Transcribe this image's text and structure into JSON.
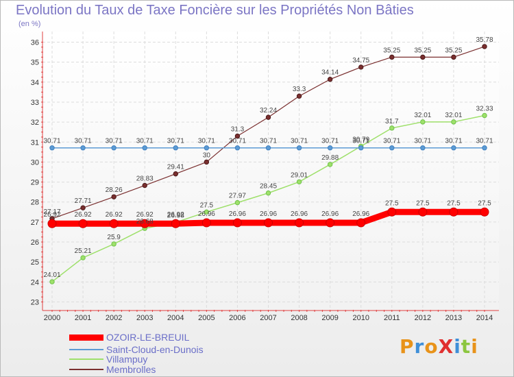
{
  "chart_data": {
    "type": "line",
    "title": "Evolution du Taux de Taxe Foncière sur les Propriétés Non Bâties",
    "ylabel": "(en %)",
    "xlabel": "",
    "categories": [
      "2000",
      "2001",
      "2002",
      "2003",
      "2004",
      "2005",
      "2006",
      "2007",
      "2008",
      "2009",
      "2010",
      "2011",
      "2012",
      "2013",
      "2014"
    ],
    "yticks": [
      23,
      24,
      25,
      26,
      27,
      28,
      29,
      30,
      31,
      32,
      33,
      34,
      35,
      36
    ],
    "ylim": [
      23,
      36
    ],
    "series": [
      {
        "name": "OZOIR-LE-BREUIL",
        "color": "#ff0000",
        "values": [
          26.92,
          26.92,
          26.92,
          26.92,
          26.92,
          26.96,
          26.96,
          26.96,
          26.96,
          26.96,
          26.96,
          27.5,
          27.5,
          27.5,
          27.5
        ],
        "labels": [
          "26.92",
          "26.92",
          "26.92",
          "26.92",
          "26.92",
          "26.96",
          "26.96",
          "26.96",
          "26.96",
          "26.96",
          "26.96",
          "27.5",
          "27.5",
          "27.5",
          "27.5"
        ]
      },
      {
        "name": "Saint-Cloud-en-Dunois",
        "color": "#5c9bd4",
        "values": [
          30.71,
          30.71,
          30.71,
          30.71,
          30.71,
          30.71,
          30.71,
          30.71,
          30.71,
          30.71,
          30.71,
          30.71,
          30.71,
          30.71,
          30.71
        ],
        "labels": [
          "30.71",
          "30.71",
          "30.71",
          "30.71",
          "30.71",
          "30.71",
          "30.71",
          "30.71",
          "30.71",
          "30.71",
          "30.71",
          "30.71",
          "30.71",
          "30.71",
          "30.71"
        ]
      },
      {
        "name": "Villampuy",
        "color": "#9ee06a",
        "values": [
          24.01,
          25.21,
          25.9,
          26.68,
          26.98,
          27.5,
          27.97,
          28.45,
          29.01,
          29.88,
          30.79,
          31.7,
          32.01,
          32.01,
          32.33
        ],
        "labels": [
          "24.01",
          "25.21",
          "25.9",
          "26.68",
          "26.98",
          "27.5",
          "27.97",
          "28.45",
          "29.01",
          "29.88",
          "30.79",
          "31.7",
          "32.01",
          "32.01",
          "32.33"
        ]
      },
      {
        "name": "Membrolles",
        "color": "#7a2f2f",
        "values": [
          27.17,
          27.71,
          28.26,
          28.83,
          29.41,
          30,
          31.3,
          32.24,
          33.3,
          34.14,
          34.75,
          35.25,
          35.25,
          35.25,
          35.78
        ],
        "labels": [
          "27.17",
          "27.71",
          "28.26",
          "28.83",
          "29.41",
          "30",
          "31.3",
          "32.24",
          "33.3",
          "34.14",
          "34.75",
          "35.25",
          "35.25",
          "35.25",
          "35.78"
        ]
      }
    ],
    "grid": true,
    "legend_position": "bottom-left"
  },
  "branding": {
    "logo_text": "ProXiti"
  }
}
